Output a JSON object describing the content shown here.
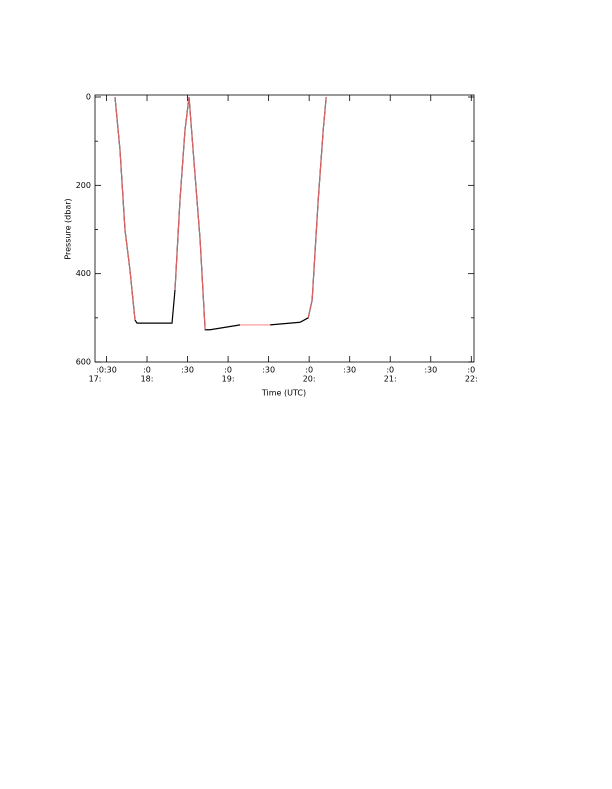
{
  "chart_data": {
    "type": "line",
    "x_label": "Time (UTC)",
    "y_label": "Pressure (dbar)",
    "x": [
      36.3,
      40,
      43.7,
      47.4,
      51.1,
      52.6,
      78.5,
      80.7,
      84.4,
      88.1,
      91.1,
      94.1,
      99.3,
      103,
      106.7,
      128.9,
      140,
      151.1,
      173.3,
      179.3,
      182.2,
      186.7,
      190.4,
      192.6
    ],
    "series": [
      {
        "color": "#000000",
        "values": [
          0,
          120,
          301,
          392,
          505,
          512,
          512,
          437,
          233,
          75,
          0,
          120,
          324,
          527,
          527,
          516,
          null,
          516,
          510,
          500,
          460,
          233,
          75,
          0
        ]
      },
      {
        "color": "#ff7070",
        "values": [
          0,
          120,
          301,
          392,
          505,
          null,
          null,
          437,
          233,
          75,
          0,
          120,
          324,
          527,
          null,
          516,
          516,
          516,
          null,
          500,
          460,
          233,
          75,
          0
        ]
      }
    ],
    "xlim": [
      21.5,
      302
    ],
    "xticks": [
      {
        "value": 30,
        "label": ":0:30"
      },
      {
        "value": 60,
        "label": ":0"
      },
      {
        "value": 90,
        "label": ":30"
      },
      {
        "value": 120,
        "label": ":0"
      },
      {
        "value": 150,
        "label": ":30"
      },
      {
        "value": 180,
        "label": ":0"
      },
      {
        "value": 210,
        "label": ":30"
      },
      {
        "value": 240,
        "label": ":0"
      },
      {
        "value": 270,
        "label": ":30"
      },
      {
        "value": 300,
        "label": ":0"
      }
    ],
    "hour_labels": [
      {
        "value": 21.5,
        "label": "17:"
      },
      {
        "value": 60,
        "label": "18:"
      },
      {
        "value": 120,
        "label": "19:"
      },
      {
        "value": 180,
        "label": "20:"
      },
      {
        "value": 240,
        "label": "21:"
      },
      {
        "value": 300,
        "label": "22:"
      }
    ],
    "ylim": [
      0,
      600
    ],
    "yticks": [
      0,
      200,
      400,
      600
    ],
    "yminor_ticks": [
      100,
      300,
      500
    ],
    "y_inverted": true
  }
}
